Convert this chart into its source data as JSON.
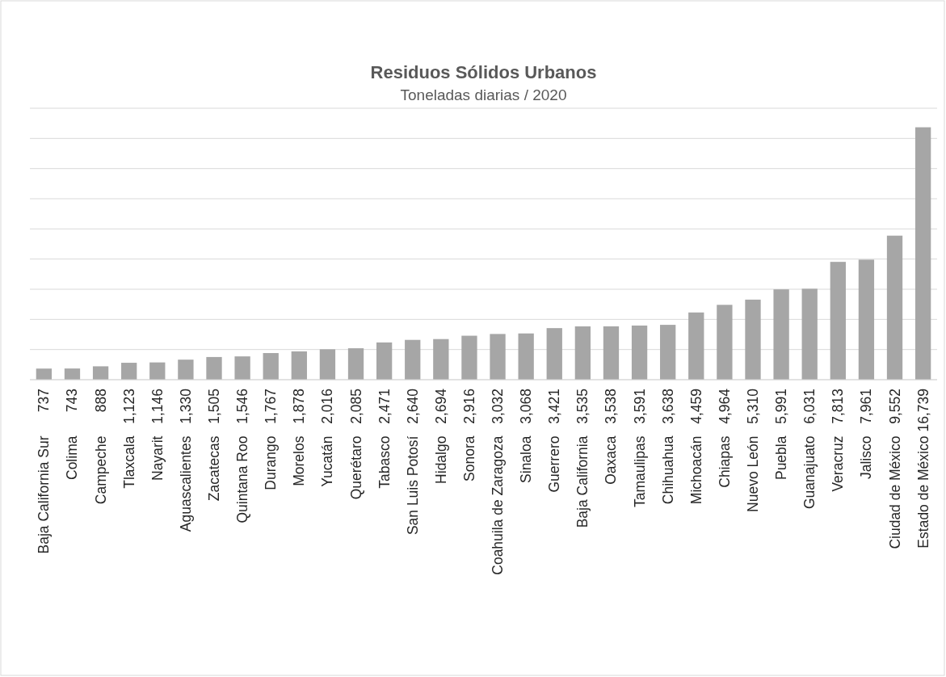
{
  "chart_data": {
    "type": "bar",
    "title": "Residuos Sólidos Urbanos",
    "subtitle": "Toneladas diarias / 2020",
    "categories": [
      "Baja California Sur",
      "Colima",
      "Campeche",
      "Tlaxcala",
      "Nayarit",
      "Aguascalientes",
      "Zacatecas",
      "Quintana Roo",
      "Durango",
      "Morelos",
      "Yucatán",
      "Querétaro",
      "Tabasco",
      "San Luis Potosí",
      "Hidalgo",
      "Sonora",
      "Coahuila de Zaragoza",
      "Sinaloa",
      "Guerrero",
      "Baja California",
      "Oaxaca",
      "Tamaulipas",
      "Chihuahua",
      "Michoacán",
      "Chiapas",
      "Nuevo León",
      "Puebla",
      "Guanajuato",
      "Veracruz",
      "Jalisco",
      "Ciudad de México",
      "Estado de México"
    ],
    "values": [
      737,
      743,
      888,
      1123,
      1146,
      1330,
      1505,
      1546,
      1767,
      1878,
      2016,
      2085,
      2471,
      2640,
      2694,
      2916,
      3032,
      3068,
      3421,
      3535,
      3538,
      3591,
      3638,
      4459,
      4964,
      5310,
      5991,
      6031,
      7813,
      7961,
      9552,
      16739
    ],
    "value_labels": [
      "737",
      "743",
      "888",
      "1,123",
      "1,146",
      "1,330",
      "1,505",
      "1,546",
      "1,767",
      "1,878",
      "2,016",
      "2,085",
      "2,471",
      "2,640",
      "2,694",
      "2,916",
      "3,032",
      "3,068",
      "3,421",
      "3,535",
      "3,538",
      "3,591",
      "3,638",
      "4,459",
      "4,964",
      "5,310",
      "5,991",
      "6,031",
      "7,813",
      "7,961",
      "9,552",
      "16,739"
    ],
    "color": "#a6a6a6",
    "ylim": [
      0,
      18000
    ],
    "yticks": [
      {
        "value": 0,
        "label": null
      },
      {
        "value": 2000,
        "label": null
      },
      {
        "value": 4000,
        "label": null
      },
      {
        "value": 6000,
        "label": null
      },
      {
        "value": 8000,
        "label": null
      },
      {
        "value": 10000,
        "label": null
      },
      {
        "value": 12000,
        "label": null
      },
      {
        "value": 14000,
        "label": null
      },
      {
        "value": 16000,
        "label": null
      },
      {
        "value": 18000,
        "label": null
      }
    ],
    "tick_labels": "x",
    "grid": "y"
  }
}
